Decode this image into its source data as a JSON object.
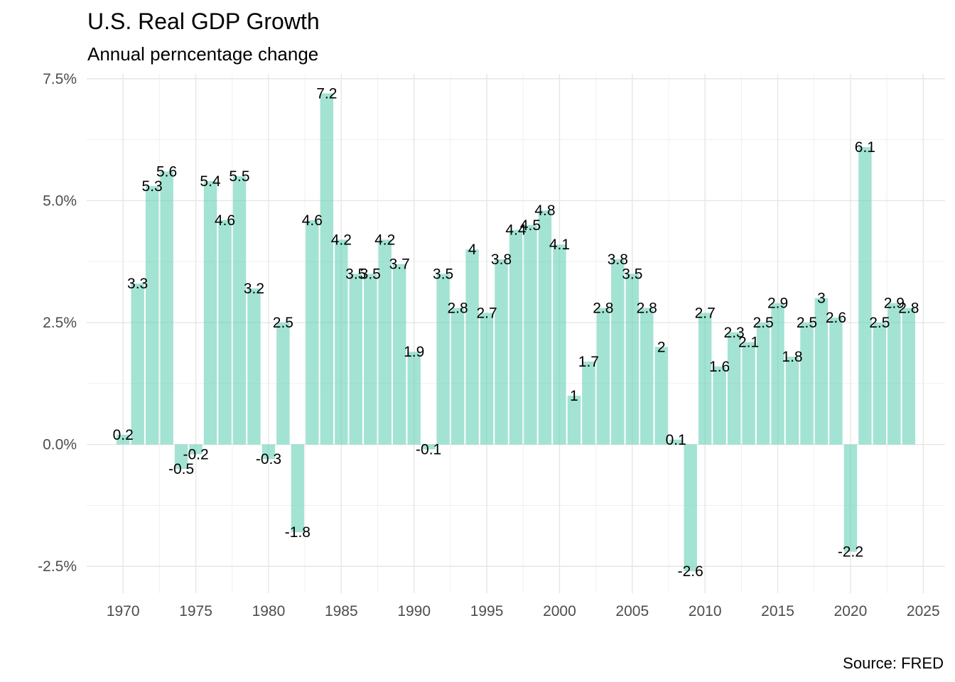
{
  "chart_data": {
    "type": "bar",
    "title": "U.S. Real GDP Growth",
    "subtitle": "Annual perncentage change",
    "caption": "Source: FRED",
    "xlabel": "",
    "ylabel": "",
    "x": [
      1970,
      1971,
      1972,
      1973,
      1974,
      1975,
      1976,
      1977,
      1978,
      1979,
      1980,
      1981,
      1982,
      1983,
      1984,
      1985,
      1986,
      1987,
      1988,
      1989,
      1990,
      1991,
      1992,
      1993,
      1994,
      1995,
      1996,
      1997,
      1998,
      1999,
      2000,
      2001,
      2002,
      2003,
      2004,
      2005,
      2006,
      2007,
      2008,
      2009,
      2010,
      2011,
      2012,
      2013,
      2014,
      2015,
      2016,
      2017,
      2018,
      2019,
      2020,
      2021,
      2022,
      2023,
      2024
    ],
    "values": [
      0.2,
      3.3,
      5.3,
      5.6,
      -0.5,
      -0.2,
      5.4,
      4.6,
      5.5,
      3.2,
      -0.3,
      2.5,
      -1.8,
      4.6,
      7.2,
      4.2,
      3.5,
      3.5,
      4.2,
      3.7,
      1.9,
      -0.1,
      3.5,
      2.8,
      4,
      2.7,
      3.8,
      4.4,
      4.5,
      4.8,
      4.1,
      1,
      1.7,
      2.8,
      3.8,
      3.5,
      2.8,
      2,
      0.1,
      -2.6,
      2.7,
      1.6,
      2.3,
      2.1,
      2.5,
      2.9,
      1.8,
      2.5,
      3,
      2.6,
      -2.2,
      6.1,
      2.5,
      2.9,
      2.8
    ],
    "labels": [
      "0.2",
      "3.3",
      "5.3",
      "5.6",
      "-0.5",
      "-0.2",
      "5.4",
      "4.6",
      "5.5",
      "3.2",
      "-0.3",
      "2.5",
      "-1.8",
      "4.6",
      "7.2",
      "4.2",
      "3.5",
      "3.5",
      "4.2",
      "3.7",
      "1.9",
      "-0.1",
      "3.5",
      "2.8",
      "4",
      "2.7",
      "3.8",
      "4.4",
      "4.5",
      "4.8",
      "4.1",
      "1",
      "1.7",
      "2.8",
      "3.8",
      "3.5",
      "2.8",
      "2",
      "0.1",
      "-2.6",
      "2.7",
      "1.6",
      "2.3",
      "2.1",
      "2.5",
      "2.9",
      "1.8",
      "2.5",
      "3",
      "2.6",
      "-2.2",
      "6.1",
      "2.5",
      "2.9",
      "2.8"
    ],
    "x_ticks": [
      1970,
      1975,
      1980,
      1985,
      1990,
      1995,
      2000,
      2005,
      2010,
      2015,
      2020,
      2025
    ],
    "x_tick_labels": [
      "1970",
      "1975",
      "1980",
      "1985",
      "1990",
      "1995",
      "2000",
      "2005",
      "2010",
      "2015",
      "2020",
      "2025"
    ],
    "y_ticks": [
      -2.5,
      0,
      2.5,
      5,
      7.5
    ],
    "y_tick_labels": [
      "-2.5%",
      "0.0%",
      "2.5%",
      "5.0%",
      "7.5%"
    ],
    "xlim": [
      1967.5,
      2026.5
    ],
    "ylim": [
      -3.05,
      7.6
    ],
    "grid": true,
    "bar_color": "#66d1b5",
    "bar_opacity": 0.6
  }
}
